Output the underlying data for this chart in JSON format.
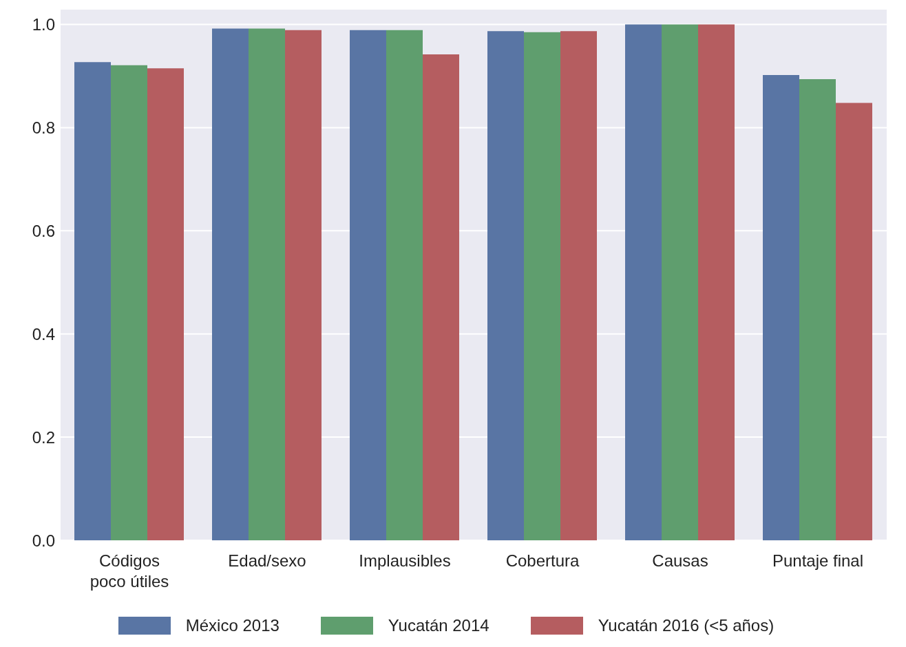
{
  "chart_data": {
    "type": "bar",
    "categories": [
      "Códigos poco útiles",
      "Edad/sexo",
      "Implausibles",
      "Cobertura",
      "Causas",
      "Puntaje final"
    ],
    "series": [
      {
        "name": "México 2013",
        "color": "#5975a4",
        "values": [
          0.927,
          0.992,
          0.989,
          0.987,
          1.0,
          0.902
        ]
      },
      {
        "name": "Yucatán 2014",
        "color": "#5f9e6e",
        "values": [
          0.921,
          0.992,
          0.989,
          0.985,
          1.0,
          0.894
        ]
      },
      {
        "name": "Yucatán 2016 (<5 años)",
        "color": "#b55d60",
        "values": [
          0.915,
          0.989,
          0.942,
          0.987,
          1.0,
          0.848
        ]
      }
    ],
    "ylim": [
      0,
      1.03
    ],
    "yticks": [
      {
        "value": 0,
        "label": "0.0"
      },
      0.2,
      0.4,
      0.6,
      0.8,
      {
        "value": 1,
        "label": "1.0"
      }
    ],
    "grid": "y",
    "legend": "bottom"
  }
}
